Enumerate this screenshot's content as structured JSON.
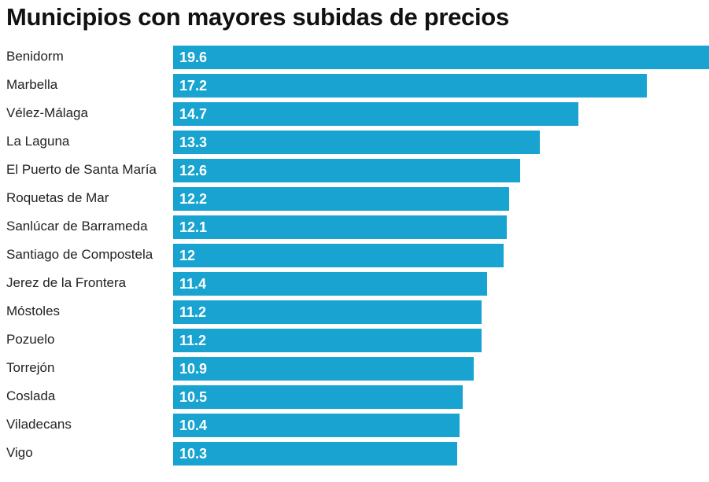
{
  "chart_data": {
    "type": "bar",
    "orientation": "horizontal",
    "title": "Municipios con mayores subidas de precios",
    "categories": [
      "Benidorm",
      "Marbella",
      "Vélez-Málaga",
      "La Laguna",
      "El Puerto de Santa María",
      "Roquetas de Mar",
      "Sanlúcar de Barrameda",
      "Santiago de Compostela",
      "Jerez de la Frontera",
      "Móstoles",
      "Pozuelo",
      "Torrejón",
      "Coslada",
      "Viladecans",
      "Vigo"
    ],
    "values": [
      19.6,
      17.2,
      14.7,
      13.3,
      12.6,
      12.2,
      12.1,
      12,
      11.4,
      11.2,
      11.2,
      10.9,
      10.5,
      10.4,
      10.3
    ],
    "data_labels": [
      "19.6",
      "17.2",
      "14.7",
      "13.3",
      "12.6",
      "12.2",
      "12.1",
      "12",
      "11.4",
      "11.2",
      "11.2",
      "10.9",
      "10.5",
      "10.4",
      "10.3"
    ],
    "bar_color": "#18a3d0",
    "grid": false,
    "legend": "none"
  }
}
